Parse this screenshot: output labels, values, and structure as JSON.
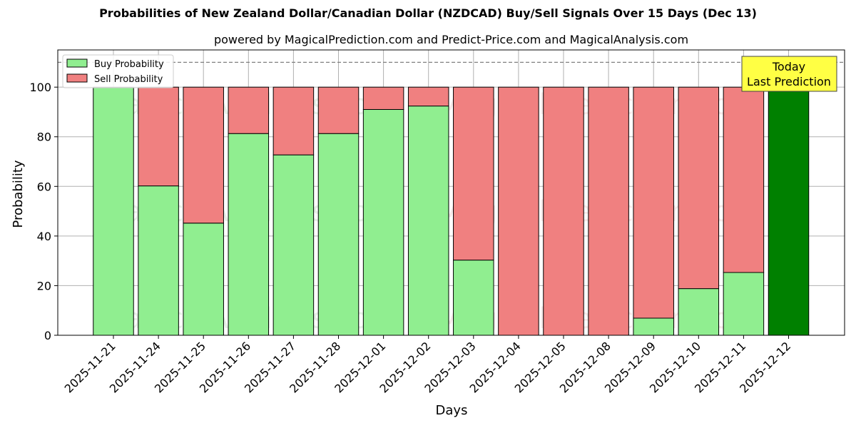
{
  "chart_data": {
    "type": "bar",
    "stacked": true,
    "title": "Probabilities of New Zealand Dollar/Canadian Dollar (NZDCAD) Buy/Sell Signals Over 15 Days (Dec 13)",
    "subtitle": "powered by MagicalPrediction.com and Predict-Price.com and MagicalAnalysis.com",
    "xlabel": "Days",
    "ylabel": "Probability",
    "ylim": [
      0,
      115
    ],
    "yticks": [
      0,
      20,
      40,
      60,
      80,
      100
    ],
    "grid": true,
    "legend_position": "top-left",
    "reference_line": 110,
    "categories": [
      "2025-11-21",
      "2025-11-24",
      "2025-11-25",
      "2025-11-26",
      "2025-11-27",
      "2025-11-28",
      "2025-12-01",
      "2025-12-02",
      "2025-12-03",
      "2025-12-04",
      "2025-12-05",
      "2025-12-08",
      "2025-12-09",
      "2025-12-10",
      "2025-12-11",
      "2025-12-12"
    ],
    "series": [
      {
        "name": "Buy Probability",
        "color": "#90ee90",
        "values": [
          100,
          60.2,
          45.2,
          81.3,
          72.7,
          81.3,
          91,
          92.4,
          30.3,
          0,
          0,
          0,
          6.9,
          18.8,
          25.3,
          100
        ]
      },
      {
        "name": "Sell Probability",
        "color": "#f08080",
        "values": [
          0,
          39.8,
          54.8,
          18.7,
          27.3,
          18.7,
          9,
          7.6,
          69.7,
          100,
          100,
          100,
          93.1,
          81.2,
          74.7,
          0
        ]
      }
    ],
    "highlight": {
      "category": "2025-12-12",
      "color": "#008000",
      "label": "Today\nLast Prediction",
      "label_bg": "#ffff44"
    },
    "watermarks": [
      "MagicalAnalysis.com",
      "MagicalPrediction.com"
    ]
  }
}
